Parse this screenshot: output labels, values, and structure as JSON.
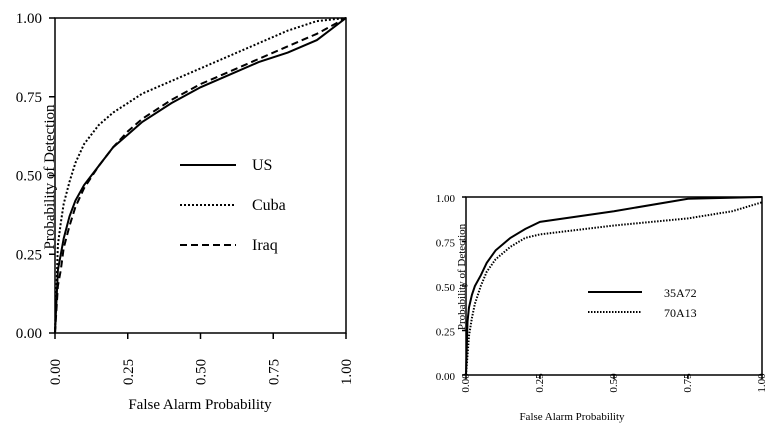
{
  "chart_data": [
    {
      "type": "line",
      "xlabel": "False Alarm Probability",
      "ylabel": "Probability of Detection",
      "xlim": [
        0,
        1
      ],
      "ylim": [
        0,
        1
      ],
      "x_ticks": [
        "0.00",
        "0.25",
        "0.50",
        "0.75",
        "1.00"
      ],
      "y_ticks": [
        "0.00",
        "0.25",
        "0.50",
        "0.75",
        "1.00"
      ],
      "legend_position": "right-middle",
      "grid": false,
      "series": [
        {
          "name": "US",
          "style": "solid",
          "x": [
            0,
            0.01,
            0.02,
            0.03,
            0.05,
            0.07,
            0.1,
            0.15,
            0.2,
            0.25,
            0.3,
            0.4,
            0.5,
            0.6,
            0.7,
            0.8,
            0.9,
            1.0
          ],
          "y": [
            0,
            0.2,
            0.25,
            0.3,
            0.37,
            0.42,
            0.47,
            0.53,
            0.59,
            0.63,
            0.67,
            0.73,
            0.78,
            0.82,
            0.86,
            0.89,
            0.93,
            1.0
          ]
        },
        {
          "name": "Cuba",
          "style": "dotted",
          "x": [
            0,
            0.01,
            0.02,
            0.03,
            0.05,
            0.07,
            0.1,
            0.15,
            0.2,
            0.25,
            0.3,
            0.4,
            0.5,
            0.6,
            0.7,
            0.8,
            0.9,
            1.0
          ],
          "y": [
            0,
            0.28,
            0.35,
            0.41,
            0.48,
            0.54,
            0.6,
            0.66,
            0.7,
            0.73,
            0.76,
            0.8,
            0.84,
            0.88,
            0.92,
            0.96,
            0.99,
            1.0
          ]
        },
        {
          "name": "Iraq",
          "style": "dashed",
          "x": [
            0,
            0.01,
            0.02,
            0.03,
            0.05,
            0.07,
            0.1,
            0.15,
            0.2,
            0.25,
            0.3,
            0.4,
            0.5,
            0.6,
            0.7,
            0.8,
            0.9,
            1.0
          ],
          "y": [
            0,
            0.15,
            0.2,
            0.27,
            0.34,
            0.4,
            0.46,
            0.53,
            0.59,
            0.64,
            0.68,
            0.74,
            0.79,
            0.83,
            0.87,
            0.91,
            0.95,
            1.0
          ]
        }
      ]
    },
    {
      "type": "line",
      "xlabel": "False Alarm Probability",
      "ylabel": "Probability of Detection",
      "xlim": [
        0,
        1
      ],
      "ylim": [
        0,
        1
      ],
      "x_ticks": [
        "0.00",
        "0.25",
        "0.50",
        "0.75",
        "1.00"
      ],
      "y_ticks": [
        "0.00",
        "0.25",
        "0.50",
        "0.75",
        "1.00"
      ],
      "legend_position": "right-middle",
      "grid": false,
      "series": [
        {
          "name": "35A72",
          "style": "solid",
          "x": [
            0,
            0.005,
            0.01,
            0.02,
            0.03,
            0.05,
            0.07,
            0.1,
            0.15,
            0.2,
            0.25,
            0.5,
            0.75,
            1.0
          ],
          "y": [
            0,
            0.3,
            0.38,
            0.45,
            0.5,
            0.56,
            0.63,
            0.7,
            0.77,
            0.82,
            0.86,
            0.92,
            0.99,
            1.0
          ]
        },
        {
          "name": "70A13",
          "style": "dotted",
          "x": [
            0,
            0.01,
            0.02,
            0.03,
            0.05,
            0.07,
            0.1,
            0.15,
            0.2,
            0.25,
            0.3,
            0.5,
            0.75,
            0.9,
            1.0
          ],
          "y": [
            0,
            0.22,
            0.32,
            0.4,
            0.5,
            0.58,
            0.65,
            0.72,
            0.77,
            0.79,
            0.8,
            0.84,
            0.88,
            0.92,
            0.97
          ]
        }
      ]
    }
  ]
}
